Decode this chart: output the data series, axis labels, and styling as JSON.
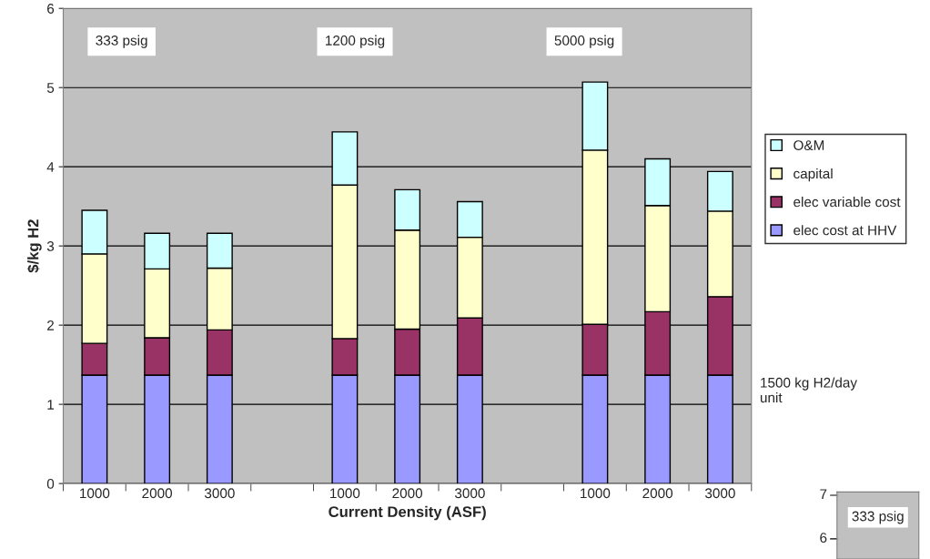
{
  "chart_data": [
    {
      "type": "bar",
      "stacked": true,
      "xlabel": "Current Density (ASF)",
      "ylabel": "$/kg H2",
      "categories": [
        "1000",
        "2000",
        "3000",
        null,
        "1000",
        "2000",
        "3000",
        null,
        "1000",
        "2000",
        "3000"
      ],
      "series": [
        {
          "name": "elec cost at HHV",
          "color": "#9999ff",
          "values": [
            1.37,
            1.37,
            1.37,
            null,
            1.37,
            1.37,
            1.37,
            null,
            1.37,
            1.37,
            1.37
          ]
        },
        {
          "name": "elec variable cost",
          "color": "#993366",
          "values": [
            0.4,
            0.47,
            0.57,
            null,
            0.46,
            0.58,
            0.72,
            null,
            0.64,
            0.8,
            0.99
          ]
        },
        {
          "name": "capital",
          "color": "#ffffcc",
          "values": [
            1.13,
            0.87,
            0.78,
            null,
            1.94,
            1.25,
            1.02,
            null,
            2.2,
            1.34,
            1.08
          ]
        },
        {
          "name": "O&M",
          "color": "#ccffff",
          "values": [
            0.55,
            0.45,
            0.44,
            null,
            0.67,
            0.51,
            0.45,
            null,
            0.86,
            0.59,
            0.5
          ]
        }
      ],
      "ylim": [
        0,
        6
      ],
      "yticks": [
        0,
        1,
        2,
        3,
        4,
        5,
        6
      ],
      "grid": "y",
      "legend": "right",
      "annotations": [
        "333 psig",
        "1200 psig",
        "5000 psig",
        "1500 kg H2/day unit"
      ]
    },
    {
      "type": "other",
      "annotations": [
        "7",
        "6",
        "333 psig"
      ]
    }
  ]
}
